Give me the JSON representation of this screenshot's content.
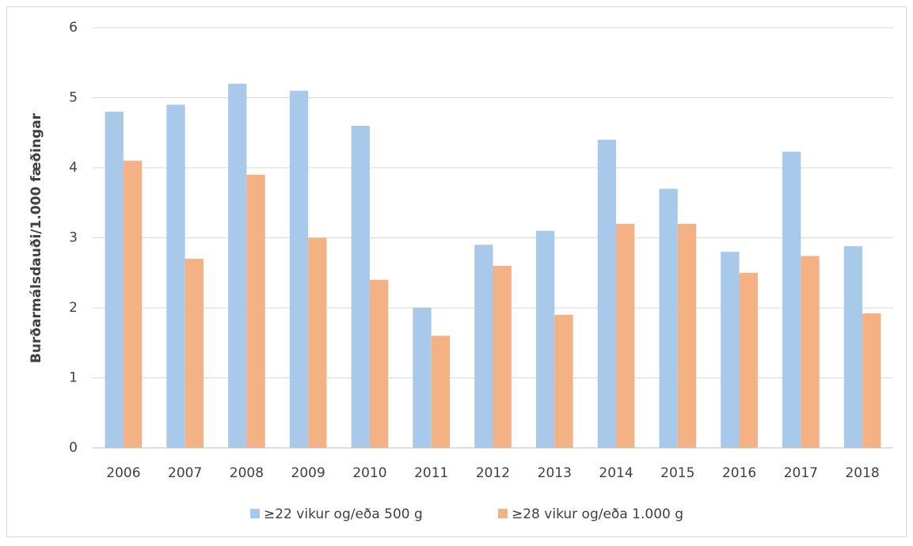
{
  "chart_data": {
    "type": "bar",
    "y_label": "Burðarmálsdauði/1.000 fæðingar",
    "categories": [
      "2006",
      "2007",
      "2008",
      "2009",
      "2010",
      "2011",
      "2012",
      "2013",
      "2014",
      "2015",
      "2016",
      "2017",
      "2018"
    ],
    "series": [
      {
        "name": "≥22 vikur og/eða 500 g",
        "color": "#a9c9eb",
        "values": [
          4.8,
          4.9,
          5.2,
          5.1,
          4.6,
          2.0,
          2.9,
          3.1,
          4.4,
          3.7,
          2.8,
          4.23,
          2.88
        ]
      },
      {
        "name": "≥28 vikur og/eða 1.000 g",
        "color": "#f4b183",
        "values": [
          4.1,
          2.7,
          3.9,
          3.0,
          2.4,
          1.6,
          2.6,
          1.9,
          3.2,
          3.2,
          2.5,
          2.74,
          1.92
        ]
      }
    ],
    "ylim": [
      0,
      6
    ],
    "yticks": [
      0,
      1,
      2,
      3,
      4,
      5,
      6
    ],
    "grid": true
  }
}
